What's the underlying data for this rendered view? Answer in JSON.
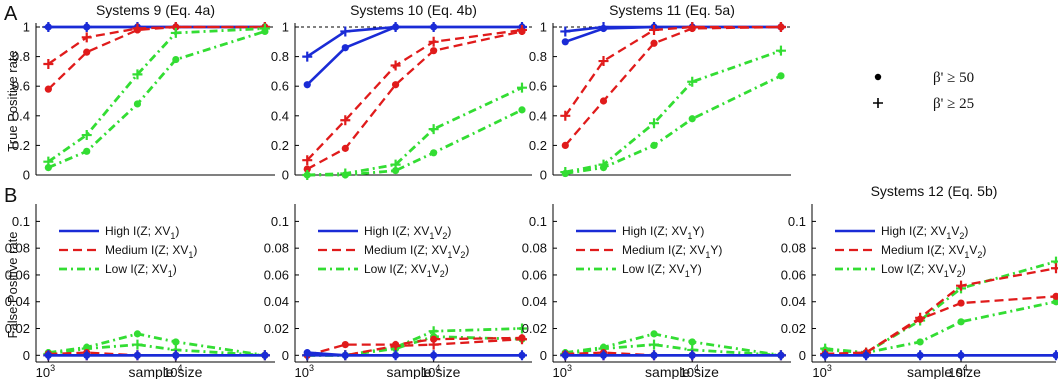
{
  "figure": {
    "panel_letters": [
      "A",
      "B"
    ],
    "beta_legend": [
      {
        "marker": "dot",
        "label": "β' ≥ 50"
      },
      {
        "marker": "plus",
        "label": "β' ≥ 25"
      }
    ]
  },
  "colors": {
    "high": "#1a2bd6",
    "medium": "#e01b1b",
    "low": "#33dd33",
    "ref": "#000000"
  },
  "chart_data": [
    {
      "type": "line",
      "panel": "A1",
      "title": "Systems 9 (Eq. 4a)",
      "ylabel": "True Positive rate",
      "xlabel": "",
      "xscale": "log",
      "xlim": [
        800,
        60000
      ],
      "ylim": [
        0,
        1
      ],
      "yticks": [
        "0",
        "0.2",
        "0.4",
        "0.6",
        "0.8",
        "1"
      ],
      "xticks": [],
      "ref_lines": [
        0,
        1
      ],
      "x": [
        1000,
        2000,
        5000,
        10000,
        50000
      ],
      "series": [
        {
          "group": "high",
          "marker": "dot",
          "values": [
            1,
            1,
            1,
            1,
            1
          ]
        },
        {
          "group": "high",
          "marker": "plus",
          "values": [
            1,
            1,
            1,
            1,
            1
          ]
        },
        {
          "group": "medium",
          "marker": "dot",
          "values": [
            0.58,
            0.83,
            0.98,
            1,
            1
          ]
        },
        {
          "group": "medium",
          "marker": "plus",
          "values": [
            0.75,
            0.93,
            0.99,
            1,
            1
          ]
        },
        {
          "group": "low",
          "marker": "dot",
          "values": [
            0.05,
            0.16,
            0.48,
            0.78,
            0.97
          ]
        },
        {
          "group": "low",
          "marker": "plus",
          "values": [
            0.09,
            0.27,
            0.68,
            0.96,
            0.99
          ]
        }
      ]
    },
    {
      "type": "line",
      "panel": "A2",
      "title": "Systems 10 (Eq. 4b)",
      "ylabel": "",
      "xlabel": "",
      "xscale": "log",
      "xlim": [
        800,
        60000
      ],
      "ylim": [
        0,
        1
      ],
      "yticks": [
        "0",
        "0.2",
        "0.4",
        "0.6",
        "0.8",
        "1"
      ],
      "xticks": [],
      "ref_lines": [
        0,
        1
      ],
      "x": [
        1000,
        2000,
        5000,
        10000,
        50000
      ],
      "series": [
        {
          "group": "high",
          "marker": "dot",
          "values": [
            0.61,
            0.86,
            1,
            1,
            1
          ]
        },
        {
          "group": "high",
          "marker": "plus",
          "values": [
            0.8,
            0.97,
            1,
            1,
            1
          ]
        },
        {
          "group": "medium",
          "marker": "dot",
          "values": [
            0.04,
            0.18,
            0.61,
            0.84,
            0.97
          ]
        },
        {
          "group": "medium",
          "marker": "plus",
          "values": [
            0.1,
            0.37,
            0.74,
            0.9,
            0.98
          ]
        },
        {
          "group": "low",
          "marker": "dot",
          "values": [
            0,
            0,
            0.03,
            0.15,
            0.44
          ]
        },
        {
          "group": "low",
          "marker": "plus",
          "values": [
            0,
            0.01,
            0.07,
            0.31,
            0.59
          ]
        }
      ]
    },
    {
      "type": "line",
      "panel": "A3",
      "title": "Systems 11 (Eq. 5a)",
      "ylabel": "",
      "xlabel": "",
      "xscale": "log",
      "xlim": [
        800,
        60000
      ],
      "ylim": [
        0,
        1
      ],
      "yticks": [
        "0",
        "0.2",
        "0.4",
        "0.6",
        "0.8",
        "1"
      ],
      "xticks": [],
      "ref_lines": [
        0,
        1
      ],
      "x": [
        1000,
        2000,
        5000,
        10000,
        50000
      ],
      "series": [
        {
          "group": "high",
          "marker": "dot",
          "values": [
            0.9,
            0.99,
            1,
            1,
            1
          ]
        },
        {
          "group": "high",
          "marker": "plus",
          "values": [
            0.97,
            1,
            1,
            1,
            1
          ]
        },
        {
          "group": "medium",
          "marker": "dot",
          "values": [
            0.2,
            0.5,
            0.89,
            0.99,
            1
          ]
        },
        {
          "group": "medium",
          "marker": "plus",
          "values": [
            0.4,
            0.77,
            0.98,
            1,
            1
          ]
        },
        {
          "group": "low",
          "marker": "dot",
          "values": [
            0.01,
            0.05,
            0.2,
            0.38,
            0.67
          ]
        },
        {
          "group": "low",
          "marker": "plus",
          "values": [
            0.02,
            0.07,
            0.35,
            0.63,
            0.84
          ]
        }
      ]
    },
    {
      "type": "line",
      "panel": "B1",
      "title": "",
      "ylabel": "False Positive rate",
      "xlabel": "sample size",
      "xscale": "log",
      "xlim": [
        800,
        60000
      ],
      "ylim": [
        -0.005,
        0.11
      ],
      "yticks": [
        "0",
        "0.02",
        "0.04",
        "0.06",
        "0.08",
        "0.1"
      ],
      "xticks": [
        {
          "base": "10",
          "exp": "3",
          "value": 1000
        },
        {
          "base": "10",
          "exp": "4",
          "value": 10000
        }
      ],
      "ref_lines": [],
      "x": [
        1000,
        2000,
        5000,
        10000,
        50000
      ],
      "legend": [
        {
          "group": "high",
          "pre": "High I(Z; XV",
          "sub1": "1",
          "mid": "",
          "sub2": "",
          "post": ")"
        },
        {
          "group": "medium",
          "pre": "Medium I(Z; XV",
          "sub1": "1",
          "mid": "",
          "sub2": "",
          "post": ")"
        },
        {
          "group": "low",
          "pre": "Low I(Z; XV",
          "sub1": "1",
          "mid": "",
          "sub2": "",
          "post": ")"
        }
      ],
      "series": [
        {
          "group": "low",
          "marker": "dot",
          "values": [
            0.002,
            0.006,
            0.016,
            0.01,
            0
          ]
        },
        {
          "group": "low",
          "marker": "plus",
          "values": [
            0.001,
            0.005,
            0.008,
            0.004,
            0
          ]
        },
        {
          "group": "medium",
          "marker": "dot",
          "values": [
            0.001,
            0.002,
            0,
            0,
            0
          ]
        },
        {
          "group": "medium",
          "marker": "plus",
          "values": [
            0,
            0,
            0,
            0,
            0
          ]
        },
        {
          "group": "high",
          "marker": "dot",
          "values": [
            0,
            0,
            0,
            0,
            0
          ]
        },
        {
          "group": "high",
          "marker": "plus",
          "values": [
            0,
            0,
            0,
            0,
            0
          ]
        }
      ]
    },
    {
      "type": "line",
      "panel": "B2",
      "title": "",
      "ylabel": "",
      "xlabel": "sample size",
      "xscale": "log",
      "xlim": [
        800,
        60000
      ],
      "ylim": [
        -0.005,
        0.11
      ],
      "yticks": [
        "0",
        "0.02",
        "0.04",
        "0.06",
        "0.08",
        "0.1"
      ],
      "xticks": [
        {
          "base": "10",
          "exp": "3",
          "value": 1000
        },
        {
          "base": "10",
          "exp": "4",
          "value": 10000
        }
      ],
      "ref_lines": [],
      "x": [
        1000,
        2000,
        5000,
        10000,
        50000
      ],
      "legend": [
        {
          "group": "high",
          "pre": "High I(Z; XV",
          "sub1": "1",
          "mid": "V",
          "sub2": "2",
          "post": ")"
        },
        {
          "group": "medium",
          "pre": "Medium I(Z; XV",
          "sub1": "1",
          "mid": "V",
          "sub2": "2",
          "post": ")"
        },
        {
          "group": "low",
          "pre": "Low I(Z; XV",
          "sub1": "1",
          "mid": "V",
          "sub2": "2",
          "post": ")"
        }
      ],
      "series": [
        {
          "group": "low",
          "marker": "dot",
          "values": [
            0,
            0,
            0.005,
            0.014,
            0.012
          ]
        },
        {
          "group": "low",
          "marker": "plus",
          "values": [
            0,
            0,
            0.006,
            0.018,
            0.02
          ]
        },
        {
          "group": "medium",
          "marker": "dot",
          "values": [
            0,
            0.008,
            0.008,
            0.012,
            0.013
          ]
        },
        {
          "group": "medium",
          "marker": "plus",
          "values": [
            0,
            0,
            0.007,
            0.008,
            0.012
          ]
        },
        {
          "group": "high",
          "marker": "dot",
          "values": [
            0.002,
            0,
            0,
            0,
            0
          ]
        },
        {
          "group": "high",
          "marker": "plus",
          "values": [
            0,
            0,
            0,
            0,
            0
          ]
        }
      ]
    },
    {
      "type": "line",
      "panel": "B3",
      "title": "",
      "ylabel": "",
      "xlabel": "sample size",
      "xscale": "log",
      "xlim": [
        800,
        60000
      ],
      "ylim": [
        -0.005,
        0.11
      ],
      "yticks": [
        "0",
        "0.02",
        "0.04",
        "0.06",
        "0.08",
        "0.1"
      ],
      "xticks": [
        {
          "base": "10",
          "exp": "3",
          "value": 1000
        },
        {
          "base": "10",
          "exp": "4",
          "value": 10000
        }
      ],
      "ref_lines": [],
      "x": [
        1000,
        2000,
        5000,
        10000,
        50000
      ],
      "legend": [
        {
          "group": "high",
          "pre": "High I(Z; XV",
          "sub1": "1",
          "mid": "Y",
          "sub2": "",
          "post": ")"
        },
        {
          "group": "medium",
          "pre": "Medium I(Z; XV",
          "sub1": "1",
          "mid": "Y",
          "sub2": "",
          "post": ")"
        },
        {
          "group": "low",
          "pre": "Low I(Z; XV",
          "sub1": "1",
          "mid": "Y",
          "sub2": "",
          "post": ")"
        }
      ],
      "series": [
        {
          "group": "low",
          "marker": "dot",
          "values": [
            0.002,
            0.006,
            0.016,
            0.01,
            0
          ]
        },
        {
          "group": "low",
          "marker": "plus",
          "values": [
            0.001,
            0.005,
            0.008,
            0.004,
            0
          ]
        },
        {
          "group": "medium",
          "marker": "dot",
          "values": [
            0.001,
            0.002,
            0,
            0,
            0
          ]
        },
        {
          "group": "medium",
          "marker": "plus",
          "values": [
            0,
            0,
            0,
            0,
            0
          ]
        },
        {
          "group": "high",
          "marker": "dot",
          "values": [
            0,
            0,
            0,
            0,
            0
          ]
        },
        {
          "group": "high",
          "marker": "plus",
          "values": [
            0,
            0,
            0,
            0,
            0
          ]
        }
      ]
    },
    {
      "type": "line",
      "panel": "B4",
      "title": "Systems 12 (Eq. 5b)",
      "ylabel": "",
      "xlabel": "sample size",
      "xscale": "log",
      "xlim": [
        800,
        50000
      ],
      "ylim": [
        -0.005,
        0.11
      ],
      "yticks": [
        "0",
        "0.02",
        "0.04",
        "0.06",
        "0.08",
        "0.1"
      ],
      "xticks": [
        {
          "base": "10",
          "exp": "3",
          "value": 1000
        },
        {
          "base": "10",
          "exp": "4",
          "value": 10000
        }
      ],
      "ref_lines": [],
      "x": [
        1000,
        2000,
        5000,
        10000,
        50000
      ],
      "legend": [
        {
          "group": "high",
          "pre": "High I(Z; XV",
          "sub1": "1",
          "mid": "V",
          "sub2": "2",
          "post": ")"
        },
        {
          "group": "medium",
          "pre": "Medium I(Z; XV",
          "sub1": "1",
          "mid": "V",
          "sub2": "2",
          "post": ")"
        },
        {
          "group": "low",
          "pre": "Low I(Z; XV",
          "sub1": "1",
          "mid": "V",
          "sub2": "2",
          "post": ")"
        }
      ],
      "series": [
        {
          "group": "low",
          "marker": "dot",
          "values": [
            0.004,
            0.002,
            0.01,
            0.025,
            0.04
          ]
        },
        {
          "group": "low",
          "marker": "plus",
          "values": [
            0.005,
            0.002,
            0.026,
            0.05,
            0.07
          ]
        },
        {
          "group": "medium",
          "marker": "dot",
          "values": [
            0.001,
            0.002,
            0.027,
            0.039,
            0.044
          ]
        },
        {
          "group": "medium",
          "marker": "plus",
          "values": [
            0.001,
            0.002,
            0.028,
            0.052,
            0.065
          ]
        },
        {
          "group": "high",
          "marker": "dot",
          "values": [
            0,
            0,
            0,
            0,
            0
          ]
        },
        {
          "group": "high",
          "marker": "plus",
          "values": [
            0,
            0,
            0,
            0,
            0
          ]
        }
      ]
    }
  ]
}
